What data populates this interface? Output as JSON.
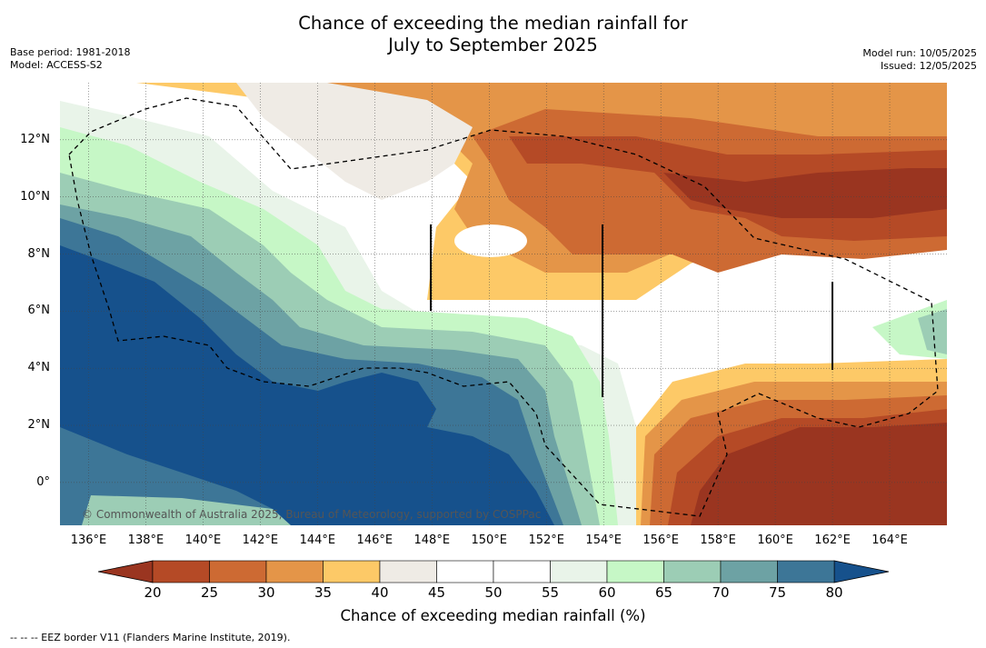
{
  "title_line1": "Chance of exceeding the median rainfall for",
  "title_line2": "July to September 2025",
  "left_meta": {
    "base_period": "Base period: 1981-2018",
    "model": "Model: ACCESS-S2"
  },
  "right_meta": {
    "model_run": "Model run: 10/05/2025",
    "issued": "Issued: 12/05/2025"
  },
  "map": {
    "lat_labels": [
      "12°N",
      "10°N",
      "8°N",
      "6°N",
      "4°N",
      "2°N",
      "0°"
    ],
    "lat_values": [
      12,
      10,
      8,
      6,
      4,
      2,
      0
    ],
    "lon_labels": [
      "136°E",
      "138°E",
      "140°E",
      "142°E",
      "144°E",
      "146°E",
      "148°E",
      "150°E",
      "152°E",
      "154°E",
      "156°E",
      "158°E",
      "160°E",
      "162°E",
      "164°E"
    ],
    "lon_values": [
      136,
      138,
      140,
      142,
      144,
      146,
      148,
      150,
      152,
      154,
      156,
      158,
      160,
      162,
      164
    ],
    "lon_range": [
      135,
      166
    ],
    "lat_range": [
      -1.5,
      14
    ],
    "copyright": "© Commonwealth of Australia 2025, Bureau of Meteorology, supported by COSPPac"
  },
  "colorbar": {
    "ticks": [
      "20",
      "25",
      "30",
      "35",
      "40",
      "45",
      "50",
      "55",
      "60",
      "65",
      "70",
      "75",
      "80"
    ],
    "colors": [
      "#9a3520",
      "#b54a26",
      "#cd6a33",
      "#e49548",
      "#fdc967",
      "#efebe5",
      "#ffffff",
      "#ffffff",
      "#e9f4e9",
      "#c6f7c6",
      "#9ccdb5",
      "#6da2a4",
      "#3d7697",
      "#16518c"
    ],
    "label": "Chance of exceeding median rainfall (%)"
  },
  "footer": "--  --  -- EEZ border V11 (Flanders Marine Institute, 2019)."
}
